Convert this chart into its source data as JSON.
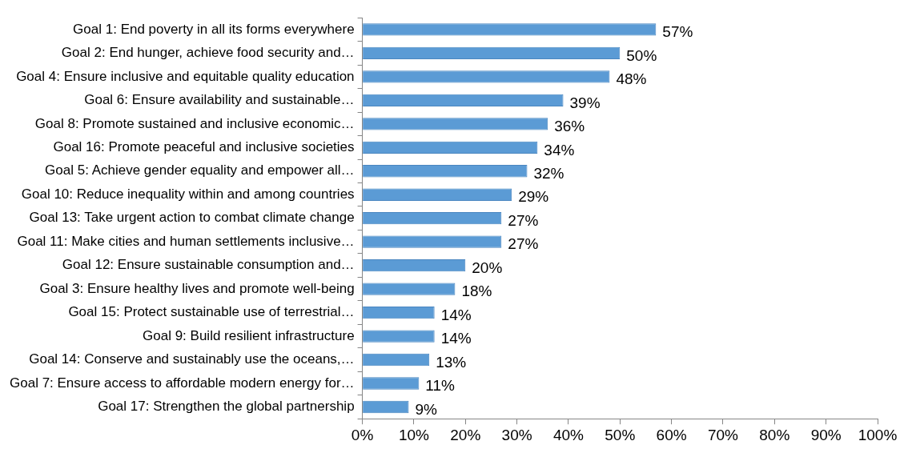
{
  "chart_data": {
    "type": "bar",
    "orientation": "horizontal",
    "categories": [
      "Goal 1: End poverty in all its forms everywhere",
      "Goal 2: End hunger, achieve food security and…",
      "Goal 4: Ensure inclusive and equitable quality education",
      "Goal 6: Ensure availability and sustainable…",
      "Goal 8: Promote sustained and inclusive economic…",
      "Goal 16: Promote peaceful and inclusive societies",
      "Goal 5: Achieve gender equality and empower all…",
      "Goal 10: Reduce inequality within and among countries",
      "Goal 13: Take urgent action to combat climate change",
      "Goal 11: Make cities and human settlements inclusive…",
      "Goal 12: Ensure sustainable consumption and…",
      "Goal 3: Ensure healthy lives and promote well-being",
      "Goal 15: Protect sustainable use of terrestrial…",
      "Goal 9: Build resilient infrastructure",
      "Goal 14: Conserve and sustainably use the oceans,…",
      "Goal 7: Ensure access to affordable modern energy for…",
      "Goal 17: Strengthen the global partnership"
    ],
    "values": [
      57,
      50,
      48,
      39,
      36,
      34,
      32,
      29,
      27,
      27,
      20,
      18,
      14,
      14,
      13,
      11,
      9
    ],
    "value_labels": [
      "57%",
      "50%",
      "48%",
      "39%",
      "36%",
      "34%",
      "32%",
      "29%",
      "27%",
      "27%",
      "20%",
      "18%",
      "14%",
      "14%",
      "13%",
      "11%",
      "9%"
    ],
    "color": "#5b9bd5",
    "xlim": [
      0,
      100
    ],
    "xticks": [
      {
        "value": 0,
        "label": "0%"
      },
      {
        "value": 10,
        "label": "10%"
      },
      {
        "value": 20,
        "label": "20%"
      },
      {
        "value": 30,
        "label": "30%"
      },
      {
        "value": 40,
        "label": "40%"
      },
      {
        "value": 50,
        "label": "50%"
      },
      {
        "value": 60,
        "label": "60%"
      },
      {
        "value": 70,
        "label": "70%"
      },
      {
        "value": 80,
        "label": "80%"
      },
      {
        "value": 90,
        "label": "90%"
      },
      {
        "value": 100,
        "label": "100%"
      }
    ],
    "grid": false,
    "legend": false
  }
}
